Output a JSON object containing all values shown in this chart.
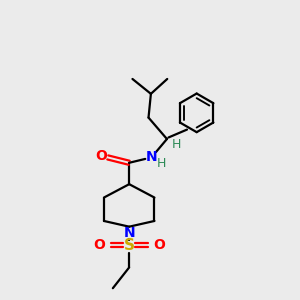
{
  "background_color": "#ebebeb",
  "bond_color": "#000000",
  "N_color": "#0000ff",
  "O_color": "#ff0000",
  "S_color": "#ccaa00",
  "H_color": "#2e8b57",
  "line_width": 1.6,
  "fig_size": [
    3.0,
    3.0
  ],
  "dpi": 100,
  "xlim": [
    0,
    10
  ],
  "ylim": [
    0,
    10
  ]
}
